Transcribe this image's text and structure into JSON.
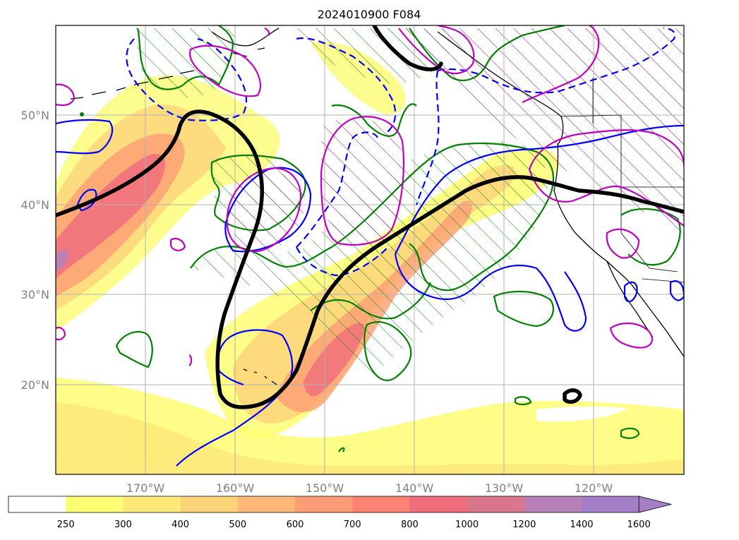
{
  "title": "2024010900 F084",
  "map": {
    "lat_ticks": [
      "50°N",
      "40°N",
      "30°N",
      "20°N"
    ],
    "lon_ticks": [
      "170°W",
      "160°W",
      "150°W",
      "140°W",
      "130°W",
      "120°W"
    ],
    "extent": {
      "lon_min": -180,
      "lon_max": -110,
      "lat_min": 10,
      "lat_max": 60
    },
    "gridlines": true
  },
  "colorbar": {
    "levels": [
      "250",
      "300",
      "400",
      "500",
      "600",
      "700",
      "800",
      "1000",
      "1200",
      "1400",
      "1600"
    ],
    "colors": [
      "#ffffff",
      "#fdfd73",
      "#fde879",
      "#fdd37a",
      "#fdb878",
      "#fd9d76",
      "#fc8273",
      "#f06e7c",
      "#d9768c",
      "#b880b9",
      "#a57ec8"
    ],
    "extend": "max"
  },
  "legend_colors": {
    "jet_axis": "#000000",
    "contour_blue": "#0000ff",
    "contour_green": "#008000",
    "contour_magenta": "#c000c0"
  }
}
